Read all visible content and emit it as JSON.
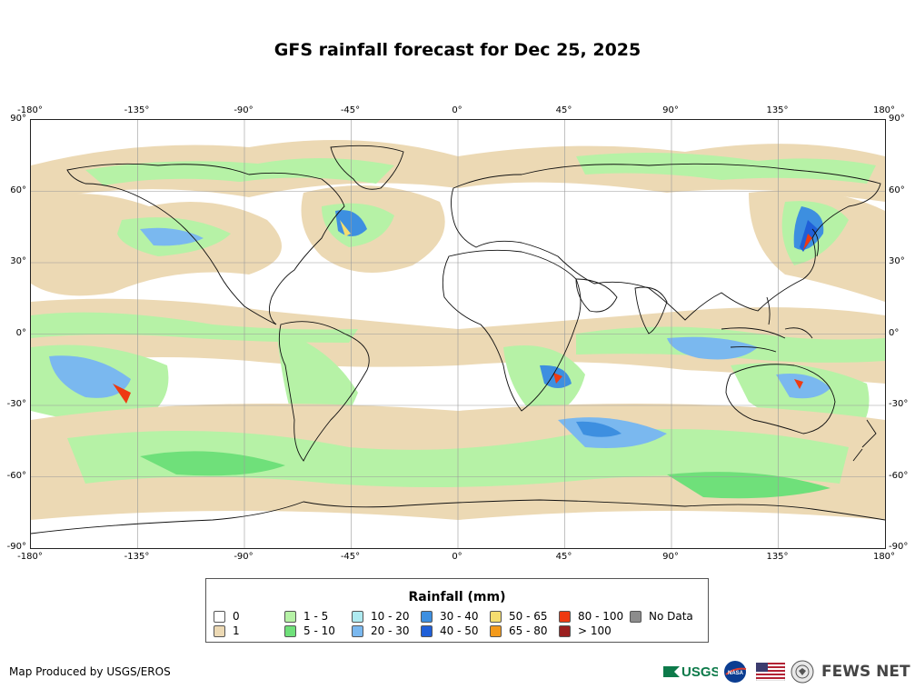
{
  "title": "GFS rainfall forecast for Dec 25, 2025",
  "axes": {
    "top_lon": [
      "-180°",
      "-135°",
      "-90°",
      "-45°",
      "0°",
      "45°",
      "90°",
      "135°",
      "180°"
    ],
    "bottom_lon": [
      "-180°",
      "-135°",
      "-90°",
      "-45°",
      "0°",
      "45°",
      "90°",
      "135°",
      "180°"
    ],
    "left_lat": [
      "90°",
      "60°",
      "30°",
      "0°",
      "-30°",
      "-60°",
      "-90°"
    ],
    "right_lat": [
      "90°",
      "60°",
      "30°",
      "0°",
      "-30°",
      "-60°",
      "-90°"
    ]
  },
  "legend": {
    "title": "Rainfall (mm)",
    "items": [
      {
        "label": "0",
        "color": "#ffffff"
      },
      {
        "label": "1",
        "color": "#ecd9b4"
      },
      {
        "label": "1 - 5",
        "color": "#b6f2a6"
      },
      {
        "label": "5 - 10",
        "color": "#6fe07a"
      },
      {
        "label": "10 - 20",
        "color": "#aeeaf0"
      },
      {
        "label": "20 - 30",
        "color": "#7ab8ef"
      },
      {
        "label": "30 - 40",
        "color": "#3d8fe0"
      },
      {
        "label": "40 - 50",
        "color": "#1f5fd8"
      },
      {
        "label": "50 - 65",
        "color": "#f4dd70"
      },
      {
        "label": "65 - 80",
        "color": "#f39a1b"
      },
      {
        "label": "80 - 100",
        "color": "#ee3a12"
      },
      {
        "label": "> 100",
        "color": "#9b1f1f"
      },
      {
        "label": "No Data",
        "color": "#8c8c8c"
      }
    ]
  },
  "credit": "Map Produced by USGS/EROS",
  "logos": {
    "usgs": "USGS",
    "nasa": "NASA",
    "fews": "FEWS NET"
  }
}
